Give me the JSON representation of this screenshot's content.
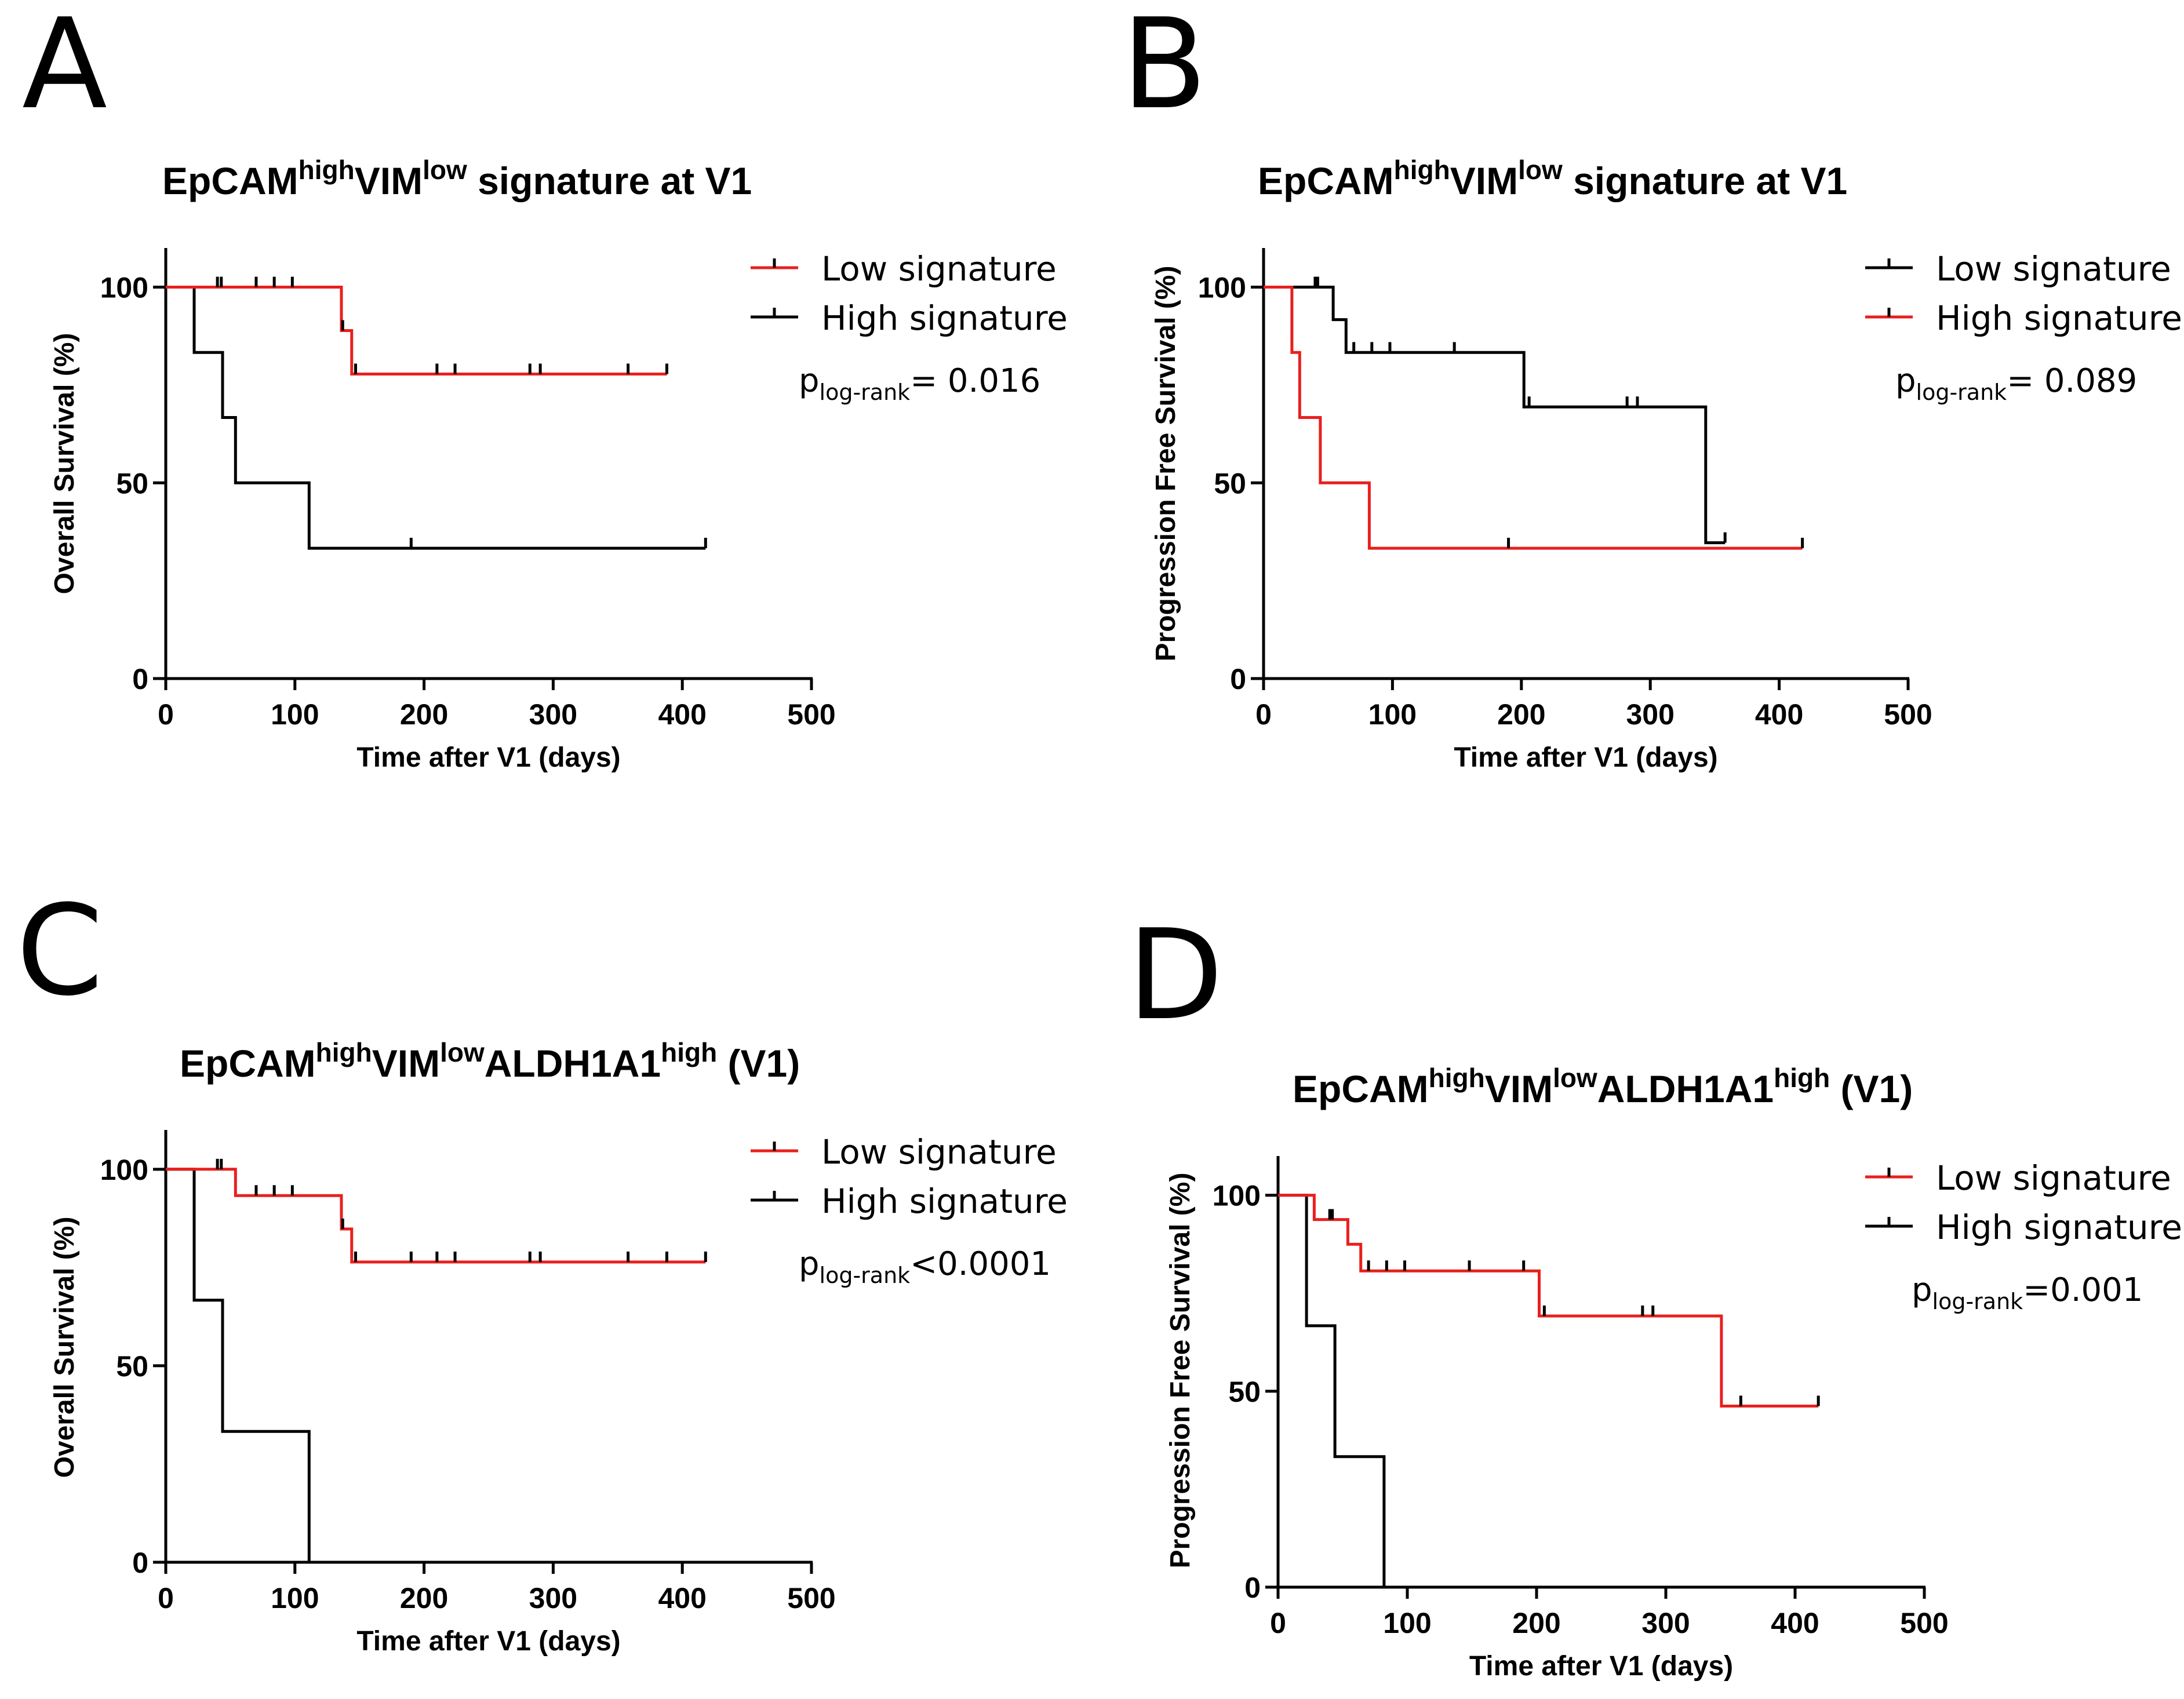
{
  "chart_data": [
    {
      "type": "line",
      "subtype": "kaplan-meier",
      "letter": "A",
      "title": {
        "main1": "EpCAM",
        "sup1": "high",
        "main2": "VIM",
        "sup2": "low",
        "main3": " signature at V1",
        "sup3": "",
        "main4": ""
      },
      "xlabel": "Time after V1 (days)",
      "ylabel": "Overall Survival (%)",
      "xlim": [
        0,
        500
      ],
      "ylim": [
        0,
        110
      ],
      "xticks": [
        0,
        100,
        200,
        300,
        400,
        500
      ],
      "yticks": [
        0,
        50,
        100
      ],
      "p_value": {
        "prefix": "p",
        "sub": "log-rank",
        "text": "= 0.016"
      },
      "series": [
        {
          "name": "Low signature",
          "color": "#e8201e",
          "steps": [
            [
              0,
              100
            ],
            [
              136,
              100
            ],
            [
              136,
              88.9
            ],
            [
              144,
              88.9
            ],
            [
              144,
              77.8
            ],
            [
              388,
              77.8
            ]
          ],
          "censored": [
            [
              40,
              100
            ],
            [
              43,
              100
            ],
            [
              70,
              100
            ],
            [
              84,
              100
            ],
            [
              98,
              100
            ],
            [
              137,
              88.9
            ],
            [
              147,
              77.8
            ],
            [
              210,
              77.8
            ],
            [
              224,
              77.8
            ],
            [
              282,
              77.8
            ],
            [
              290,
              77.8
            ],
            [
              358,
              77.8
            ],
            [
              388,
              77.8
            ]
          ]
        },
        {
          "name": "High signature",
          "color": "#000000",
          "steps": [
            [
              0,
              100
            ],
            [
              22,
              100
            ],
            [
              22,
              83.3
            ],
            [
              44,
              83.3
            ],
            [
              44,
              66.7
            ],
            [
              54,
              66.7
            ],
            [
              54,
              50
            ],
            [
              111,
              50
            ],
            [
              111,
              33.3
            ],
            [
              418,
              33.3
            ]
          ],
          "censored": [
            [
              190,
              33.3
            ],
            [
              418,
              33.3
            ]
          ]
        }
      ]
    },
    {
      "type": "line",
      "subtype": "kaplan-meier",
      "letter": "B",
      "title": {
        "main1": "EpCAM",
        "sup1": "high",
        "main2": "VIM",
        "sup2": "low",
        "main3": " signature at V1",
        "sup3": "",
        "main4": ""
      },
      "xlabel": "Time after V1 (days)",
      "ylabel": "Progression Free Survival (%)",
      "xlim": [
        0,
        500
      ],
      "ylim": [
        0,
        110
      ],
      "xticks": [
        0,
        100,
        200,
        300,
        400,
        500
      ],
      "yticks": [
        0,
        50,
        100
      ],
      "p_value": {
        "prefix": "p",
        "sub": "log-rank",
        "text": "= 0.089"
      },
      "series": [
        {
          "name": "Low signature",
          "color": "#000000",
          "steps": [
            [
              0,
              100
            ],
            [
              54,
              100
            ],
            [
              54,
              91.7
            ],
            [
              64,
              91.7
            ],
            [
              64,
              83.3
            ],
            [
              202,
              83.3
            ],
            [
              202,
              69.4
            ],
            [
              343,
              69.4
            ],
            [
              343,
              34.7
            ],
            [
              358,
              34.7
            ]
          ],
          "censored": [
            [
              40,
              100
            ],
            [
              42,
              100
            ],
            [
              70,
              83.3
            ],
            [
              84,
              83.3
            ],
            [
              98,
              83.3
            ],
            [
              148,
              83.3
            ],
            [
              206,
              69.4
            ],
            [
              282,
              69.4
            ],
            [
              290,
              69.4
            ],
            [
              358,
              34.7
            ]
          ]
        },
        {
          "name": "High signature",
          "color": "#e8201e",
          "steps": [
            [
              0,
              100
            ],
            [
              22,
              100
            ],
            [
              22,
              83.3
            ],
            [
              28,
              83.3
            ],
            [
              28,
              66.7
            ],
            [
              44,
              66.7
            ],
            [
              44,
              50
            ],
            [
              82,
              50
            ],
            [
              82,
              33.3
            ],
            [
              418,
              33.3
            ]
          ],
          "censored": [
            [
              190,
              33.3
            ],
            [
              418,
              33.3
            ]
          ]
        }
      ]
    },
    {
      "type": "line",
      "subtype": "kaplan-meier",
      "letter": "C",
      "title": {
        "main1": "EpCAM",
        "sup1": "high",
        "main2": "VIM",
        "sup2": "low",
        "main3": "ALDH1A1",
        "sup3": "high",
        "main4": " (V1)"
      },
      "xlabel": "Time after V1 (days)",
      "ylabel": "Overall Survival (%)",
      "xlim": [
        0,
        500
      ],
      "ylim": [
        0,
        110
      ],
      "xticks": [
        0,
        100,
        200,
        300,
        400,
        500
      ],
      "yticks": [
        0,
        50,
        100
      ],
      "p_value": {
        "prefix": "p",
        "sub": "log-rank",
        "text": "<0.0001"
      },
      "series": [
        {
          "name": "Low signature",
          "color": "#e8201e",
          "steps": [
            [
              0,
              100
            ],
            [
              54,
              100
            ],
            [
              54,
              93.3
            ],
            [
              136,
              93.3
            ],
            [
              136,
              84.8
            ],
            [
              144,
              84.8
            ],
            [
              144,
              76.4
            ],
            [
              418,
              76.4
            ]
          ],
          "censored": [
            [
              40,
              100
            ],
            [
              43,
              100
            ],
            [
              70,
              93.3
            ],
            [
              84,
              93.3
            ],
            [
              98,
              93.3
            ],
            [
              137,
              84.8
            ],
            [
              147,
              76.4
            ],
            [
              190,
              76.4
            ],
            [
              210,
              76.4
            ],
            [
              224,
              76.4
            ],
            [
              282,
              76.4
            ],
            [
              290,
              76.4
            ],
            [
              358,
              76.4
            ],
            [
              388,
              76.4
            ],
            [
              418,
              76.4
            ]
          ]
        },
        {
          "name": "High signature",
          "color": "#000000",
          "steps": [
            [
              0,
              100
            ],
            [
              22,
              100
            ],
            [
              22,
              66.7
            ],
            [
              44,
              66.7
            ],
            [
              44,
              33.3
            ],
            [
              111,
              33.3
            ],
            [
              111,
              0
            ]
          ],
          "censored": []
        }
      ]
    },
    {
      "type": "line",
      "subtype": "kaplan-meier",
      "letter": "D",
      "title": {
        "main1": "EpCAM",
        "sup1": "high",
        "main2": "VIM",
        "sup2": "low",
        "main3": "ALDH1A1",
        "sup3": "high",
        "main4": " (V1)"
      },
      "xlabel": "Time after V1 (days)",
      "ylabel": "Progression Free Survival (%)",
      "xlim": [
        0,
        500
      ],
      "ylim": [
        0,
        110
      ],
      "xticks": [
        0,
        100,
        200,
        300,
        400,
        500
      ],
      "yticks": [
        0,
        50,
        100
      ],
      "p_value": {
        "prefix": "p",
        "sub": "log-rank",
        "text": "=0.001"
      },
      "series": [
        {
          "name": "Low signature",
          "color": "#e8201e",
          "steps": [
            [
              0,
              100
            ],
            [
              28,
              100
            ],
            [
              28,
              93.8
            ],
            [
              54,
              93.8
            ],
            [
              54,
              87.5
            ],
            [
              64,
              87.5
            ],
            [
              64,
              80.7
            ],
            [
              202,
              80.7
            ],
            [
              202,
              69.2
            ],
            [
              343,
              69.2
            ],
            [
              343,
              46.2
            ],
            [
              418,
              46.2
            ]
          ],
          "censored": [
            [
              40,
              93.8
            ],
            [
              42,
              93.8
            ],
            [
              70,
              80.7
            ],
            [
              84,
              80.7
            ],
            [
              98,
              80.7
            ],
            [
              148,
              80.7
            ],
            [
              190,
              80.7
            ],
            [
              206,
              69.2
            ],
            [
              282,
              69.2
            ],
            [
              290,
              69.2
            ],
            [
              358,
              46.2
            ],
            [
              418,
              46.2
            ]
          ]
        },
        {
          "name": "High signature",
          "color": "#000000",
          "steps": [
            [
              0,
              100
            ],
            [
              22,
              100
            ],
            [
              22,
              66.7
            ],
            [
              44,
              66.7
            ],
            [
              44,
              33.3
            ],
            [
              82,
              33.3
            ],
            [
              82,
              0
            ]
          ],
          "censored": []
        }
      ]
    }
  ]
}
